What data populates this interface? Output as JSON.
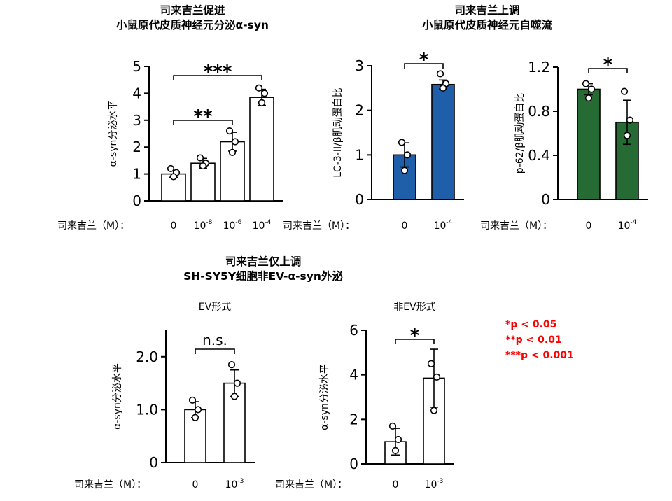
{
  "titles": {
    "top_left": [
      "司来吉兰促进",
      "小鼠原代皮质神经元分泌α-syn"
    ],
    "top_right": [
      "司来吉兰上调",
      "小鼠原代皮质神经元自噬流"
    ],
    "bottom": [
      "司来吉兰仅上调",
      "SH-SY5Y细胞非EV-α-syn外泌"
    ]
  },
  "significance_legend": [
    "*p < 0.05",
    "**p < 0.01",
    "***p < 0.001"
  ],
  "colors": {
    "bar_blue": "#1f5ea8",
    "bar_green": "#266b33",
    "legend_red": "#ff0000",
    "bar_white": "#ffffff"
  },
  "chart_data": [
    {
      "id": "c1",
      "type": "bar",
      "ylabel": "α-syn分泌水平",
      "xlabel_prefix": "司来吉兰（M）：",
      "ylim": [
        0,
        5
      ],
      "yticks": [
        "0",
        "1",
        "2",
        "3",
        "4",
        "5"
      ],
      "categories": [
        {
          "base": "0",
          "exp": ""
        },
        {
          "base": "10",
          "exp": "-8"
        },
        {
          "base": "10",
          "exp": "-6"
        },
        {
          "base": "10",
          "exp": "-4"
        }
      ],
      "values": [
        1.0,
        1.4,
        2.2,
        3.85
      ],
      "errors": [
        0.12,
        0.18,
        0.35,
        0.3
      ],
      "points": [
        [
          1.2,
          1.05,
          0.9
        ],
        [
          1.6,
          1.4,
          1.3
        ],
        [
          2.6,
          2.2,
          1.8
        ],
        [
          4.2,
          4.0,
          3.65
        ]
      ],
      "bar_color": "white",
      "brackets": [
        {
          "from": 0,
          "to": 2,
          "label": "**"
        },
        {
          "from": 0,
          "to": 3,
          "label": "***"
        }
      ]
    },
    {
      "id": "c2",
      "type": "bar",
      "ylabel": "LC-3-II/β肌动蛋白比",
      "xlabel_prefix": "司来吉兰（M）：",
      "ylim": [
        0,
        3
      ],
      "yticks": [
        "0",
        "1",
        "2",
        "3"
      ],
      "categories": [
        {
          "base": "0",
          "exp": ""
        },
        {
          "base": "10",
          "exp": "-4"
        }
      ],
      "values": [
        1.0,
        2.58
      ],
      "errors": [
        0.27,
        0.1
      ],
      "points": [
        [
          1.28,
          1.0,
          0.65
        ],
        [
          2.82,
          2.6,
          2.5
        ]
      ],
      "bar_color": "blue",
      "brackets": [
        {
          "from": 0,
          "to": 1,
          "label": "*"
        }
      ]
    },
    {
      "id": "c3",
      "type": "bar",
      "ylabel": "p-62/β肌动蛋白比",
      "xlabel_prefix": "司来吉兰（M）：",
      "ylim": [
        0,
        1.2
      ],
      "yticks": [
        "0",
        "0.4",
        "0.8",
        "1.2"
      ],
      "categories": [
        {
          "base": "0",
          "exp": ""
        },
        {
          "base": "10",
          "exp": "-4"
        }
      ],
      "values": [
        1.0,
        0.7
      ],
      "errors": [
        0.05,
        0.2
      ],
      "points": [
        [
          1.05,
          1.0,
          0.92
        ],
        [
          0.98,
          0.72,
          0.58
        ]
      ],
      "bar_color": "green",
      "brackets": [
        {
          "from": 0,
          "to": 1,
          "label": "*"
        }
      ]
    },
    {
      "id": "c4",
      "type": "bar",
      "subtitle": "EV形式",
      "ylabel": "α-syn分泌水平",
      "xlabel_prefix": "司来吉兰（M）：",
      "ylim": [
        0,
        2.5
      ],
      "yticks": [
        "0",
        "1.0",
        "2.0"
      ],
      "categories": [
        {
          "base": "0",
          "exp": ""
        },
        {
          "base": "10",
          "exp": "-3"
        }
      ],
      "values": [
        1.0,
        1.5
      ],
      "errors": [
        0.15,
        0.25
      ],
      "points": [
        [
          1.18,
          1.0,
          0.85
        ],
        [
          1.85,
          1.5,
          1.25
        ]
      ],
      "bar_color": "white",
      "brackets": [
        {
          "from": 0,
          "to": 1,
          "label": "n.s."
        }
      ]
    },
    {
      "id": "c5",
      "type": "bar",
      "subtitle": "非EV形式",
      "ylabel": "α-syn分泌水平",
      "xlabel_prefix": "司来吉兰（M）：",
      "ylim": [
        0,
        6
      ],
      "yticks": [
        "0",
        "2",
        "4",
        "6"
      ],
      "categories": [
        {
          "base": "0",
          "exp": ""
        },
        {
          "base": "10",
          "exp": "-3"
        }
      ],
      "values": [
        1.0,
        3.85
      ],
      "errors": [
        0.6,
        1.3
      ],
      "points": [
        [
          1.7,
          1.1,
          0.6
        ],
        [
          4.5,
          3.9,
          2.4
        ]
      ],
      "bar_color": "white",
      "brackets": [
        {
          "from": 0,
          "to": 1,
          "label": "*"
        }
      ]
    }
  ]
}
